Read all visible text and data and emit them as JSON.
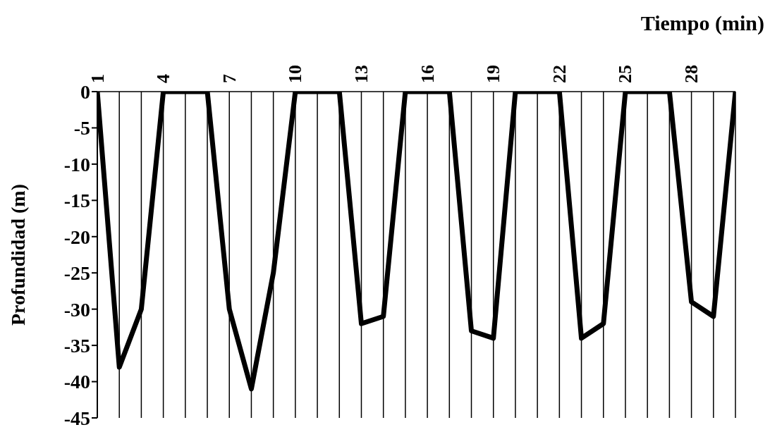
{
  "chart_data": {
    "type": "line",
    "xlabel": "Tiempo (min)",
    "ylabel": "Profundidad (m)",
    "categories": [
      "1",
      null,
      null,
      "4",
      null,
      null,
      "7",
      null,
      null,
      "10",
      null,
      null,
      "13",
      null,
      null,
      "16",
      null,
      null,
      "19",
      null,
      null,
      "22",
      null,
      null,
      "25",
      null,
      null,
      "28",
      null,
      null
    ],
    "series": [
      {
        "color": "#000000",
        "values": [
          0,
          -38,
          -30,
          0,
          0,
          0,
          -30,
          -41,
          -25,
          0,
          0,
          0,
          -32,
          -31,
          0,
          0,
          0,
          -33,
          -34,
          0,
          0,
          0,
          -34,
          -32,
          0,
          0,
          0,
          -29,
          -31,
          0
        ]
      }
    ],
    "ylim": [
      -45,
      0
    ],
    "yticks": [
      0,
      -5,
      -10,
      -15,
      -20,
      -25,
      -30,
      -35,
      -40,
      -45
    ],
    "grid": "x",
    "marker": "none",
    "line_style": "solid",
    "legend": false
  }
}
